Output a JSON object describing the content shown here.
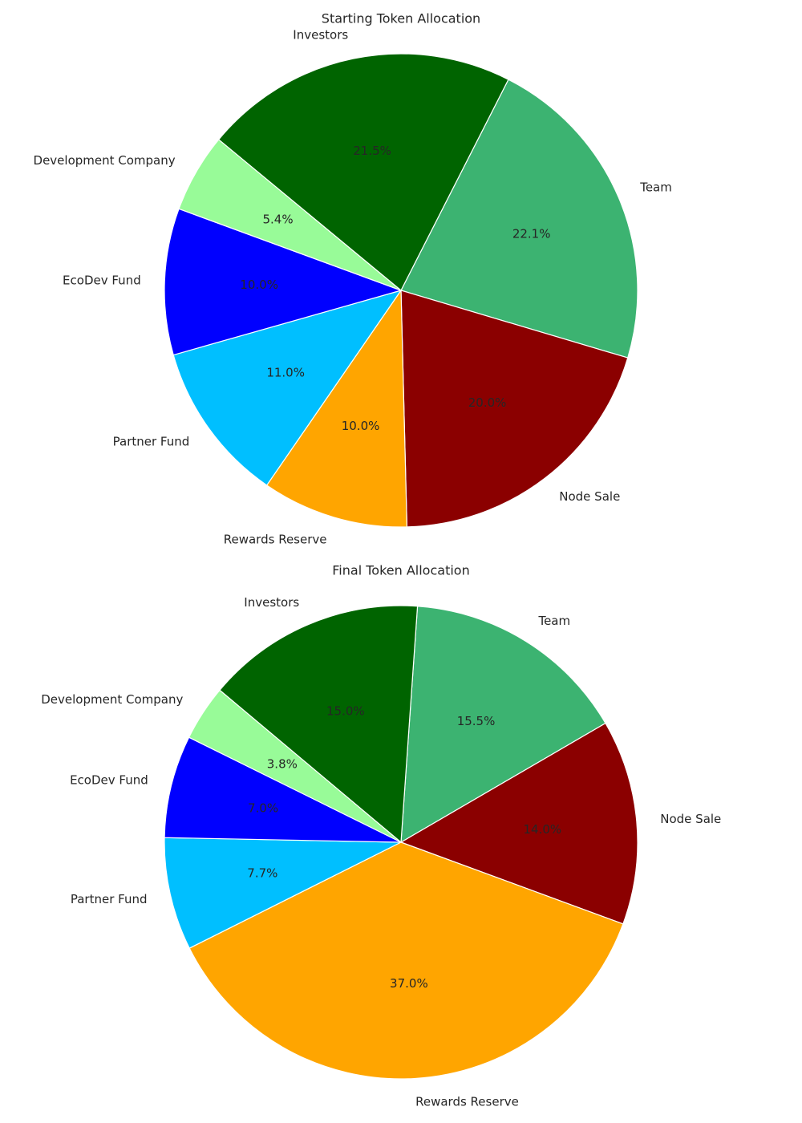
{
  "chart_data": [
    {
      "type": "pie",
      "title": "Starting Token Allocation",
      "categories": [
        "Team",
        "Node Sale",
        "Rewards Reserve",
        "Partner Fund",
        "EcoDev Fund",
        "Development Company",
        "Investors"
      ],
      "values": [
        22.1,
        20.0,
        10.0,
        11.0,
        10.0,
        5.4,
        21.5
      ],
      "value_labels": [
        "22.1%",
        "20.0%",
        "10.0%",
        "11.0%",
        "10.0%",
        "5.4%",
        "21.5%"
      ],
      "colors": [
        "#3cb371",
        "#8b0000",
        "#ffa500",
        "#00bfff",
        "#0000ff",
        "#98fb98",
        "#006400"
      ]
    },
    {
      "type": "pie",
      "title": "Final Token Allocation",
      "categories": [
        "Team",
        "Node Sale",
        "Rewards Reserve",
        "Partner Fund",
        "EcoDev Fund",
        "Development Company",
        "Investors"
      ],
      "values": [
        15.5,
        14.0,
        37.0,
        7.7,
        7.0,
        3.8,
        15.0
      ],
      "value_labels": [
        "15.5%",
        "14.0%",
        "37.0%",
        "7.7%",
        "7.0%",
        "3.8%",
        "15.0%"
      ],
      "colors": [
        "#3cb371",
        "#8b0000",
        "#ffa500",
        "#00bfff",
        "#0000ff",
        "#98fb98",
        "#006400"
      ]
    }
  ]
}
